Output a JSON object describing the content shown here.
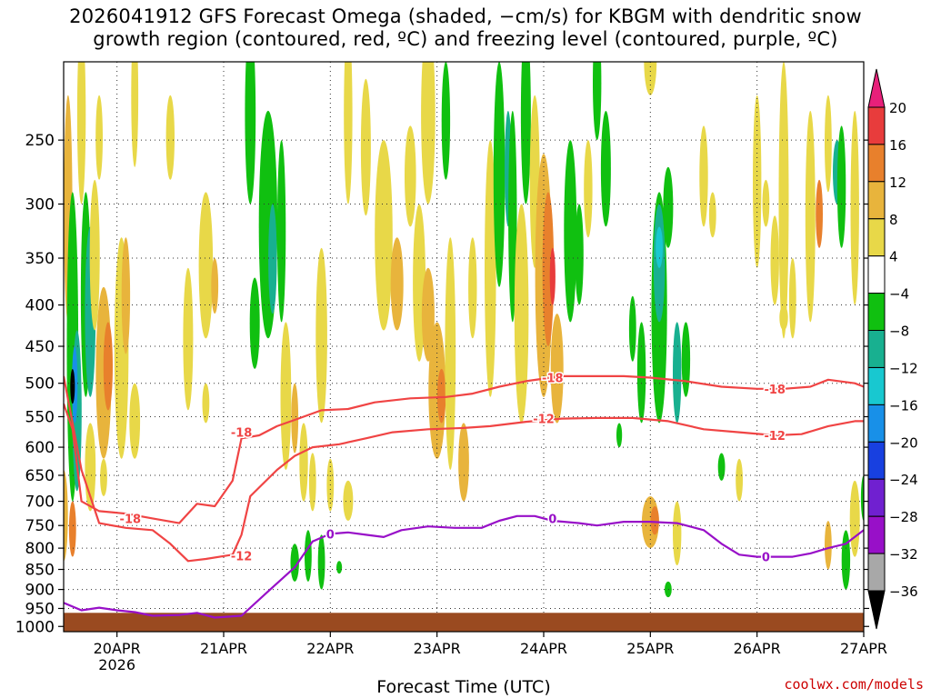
{
  "title": "2026041912 GFS Forecast Omega (shaded, −cm/s) for KBGM with dendritic snow\ngrowth region (contoured, red, ºC) and freezing level (contoured, purple, ºC)",
  "credit": "coolwx.com/models",
  "chart_data": {
    "type": "heatmap",
    "title": "2026041912 GFS Forecast Omega (shaded, −cm/s) for KBGM with dendritic snow growth region (contoured, red, ºC) and freezing level (contoured, purple, ºC)",
    "xlabel": "Forecast Time (UTC)",
    "ylabel": "",
    "x_tick_labels": [
      "20APR",
      "21APR",
      "22APR",
      "23APR",
      "24APR",
      "25APR",
      "26APR",
      "27APR"
    ],
    "x_sub_label": "2026",
    "x_range_hours": [
      -12,
      168
    ],
    "y_ticks": [
      250,
      300,
      350,
      400,
      450,
      500,
      550,
      600,
      650,
      700,
      750,
      800,
      850,
      900,
      950,
      1000
    ],
    "y_range_hpa": [
      200,
      1015
    ],
    "grid": true,
    "colorbar": {
      "levels": [
        20,
        16,
        12,
        8,
        4,
        -4,
        -8,
        -12,
        -16,
        -20,
        -24,
        -28,
        -32,
        -36
      ],
      "colors": [
        "#e8207a",
        "#e83c3c",
        "#e8802c",
        "#e8b43c",
        "#e8d848",
        "#ffffff",
        "#10c010",
        "#18b090",
        "#18c8d0",
        "#1890e8",
        "#1840e0",
        "#7020d0",
        "#9810c8",
        "#a8a8a8",
        "#000000"
      ]
    },
    "contour_labels": {
      "red": [
        "-18",
        "-12"
      ],
      "purple": [
        "0"
      ]
    },
    "series": [
      {
        "label": "-18",
        "color": "#f04444",
        "points": [
          [
            -12,
            530
          ],
          [
            -10,
            570
          ],
          [
            -8,
            700
          ],
          [
            -4,
            720
          ],
          [
            2,
            725
          ],
          [
            8,
            735
          ],
          [
            14,
            745
          ],
          [
            18,
            705
          ],
          [
            22,
            710
          ],
          [
            26,
            660
          ],
          [
            28,
            585
          ],
          [
            32,
            580
          ],
          [
            36,
            565
          ],
          [
            40,
            555
          ],
          [
            46,
            540
          ],
          [
            52,
            538
          ],
          [
            58,
            528
          ],
          [
            66,
            522
          ],
          [
            74,
            520
          ],
          [
            80,
            515
          ],
          [
            86,
            505
          ],
          [
            92,
            497
          ],
          [
            100,
            490
          ],
          [
            108,
            490
          ],
          [
            114,
            490
          ],
          [
            120,
            492
          ],
          [
            128,
            497
          ],
          [
            136,
            505
          ],
          [
            144,
            508
          ],
          [
            150,
            508
          ],
          [
            156,
            505
          ],
          [
            160,
            495
          ],
          [
            166,
            500
          ],
          [
            168,
            505
          ]
        ]
      },
      {
        "label": "-12",
        "color": "#f04444",
        "points": [
          [
            -12,
            490
          ],
          [
            -8,
            640
          ],
          [
            -4,
            745
          ],
          [
            2,
            755
          ],
          [
            8,
            760
          ],
          [
            12,
            790
          ],
          [
            16,
            830
          ],
          [
            20,
            825
          ],
          [
            26,
            815
          ],
          [
            28,
            770
          ],
          [
            30,
            690
          ],
          [
            36,
            640
          ],
          [
            40,
            615
          ],
          [
            44,
            600
          ],
          [
            50,
            595
          ],
          [
            56,
            585
          ],
          [
            62,
            575
          ],
          [
            70,
            570
          ],
          [
            78,
            568
          ],
          [
            84,
            565
          ],
          [
            92,
            558
          ],
          [
            100,
            553
          ],
          [
            108,
            552
          ],
          [
            116,
            552
          ],
          [
            124,
            557
          ],
          [
            132,
            570
          ],
          [
            140,
            575
          ],
          [
            148,
            580
          ],
          [
            154,
            578
          ],
          [
            160,
            565
          ],
          [
            166,
            557
          ],
          [
            168,
            557
          ]
        ]
      },
      {
        "label": "0",
        "color": "#9810c8",
        "points": [
          [
            -12,
            935
          ],
          [
            -8,
            955
          ],
          [
            -4,
            948
          ],
          [
            0,
            955
          ],
          [
            4,
            960
          ],
          [
            8,
            970
          ],
          [
            14,
            968
          ],
          [
            18,
            962
          ],
          [
            22,
            975
          ],
          [
            28,
            970
          ],
          [
            34,
            905
          ],
          [
            40,
            845
          ],
          [
            44,
            785
          ],
          [
            48,
            768
          ],
          [
            52,
            765
          ],
          [
            56,
            770
          ],
          [
            60,
            775
          ],
          [
            64,
            760
          ],
          [
            70,
            752
          ],
          [
            76,
            755
          ],
          [
            82,
            755
          ],
          [
            86,
            740
          ],
          [
            90,
            730
          ],
          [
            94,
            730
          ],
          [
            98,
            740
          ],
          [
            104,
            745
          ],
          [
            108,
            750
          ],
          [
            114,
            742
          ],
          [
            120,
            742
          ],
          [
            126,
            745
          ],
          [
            132,
            760
          ],
          [
            136,
            790
          ],
          [
            140,
            815
          ],
          [
            144,
            820
          ],
          [
            148,
            820
          ],
          [
            152,
            820
          ],
          [
            156,
            812
          ],
          [
            160,
            800
          ],
          [
            164,
            790
          ],
          [
            168,
            760
          ]
        ]
      }
    ],
    "ground": {
      "pressure_top_hpa": 962,
      "color": "#9a4a20"
    }
  },
  "xlabel": "Forecast Time (UTC)"
}
